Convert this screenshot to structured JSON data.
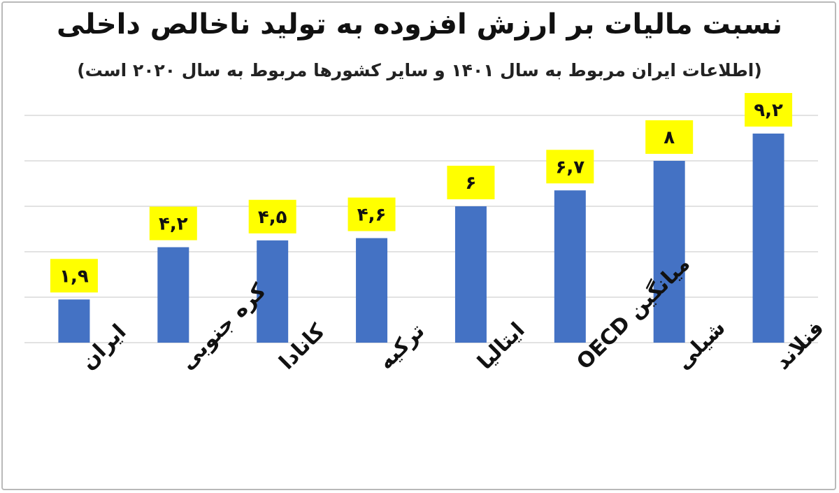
{
  "chart_data": {
    "type": "bar",
    "title": "نسبت مالیات بر ارزش افزوده به تولید ناخالص داخلی",
    "subtitle": "(اطلاعات ایران مربوط به سال ۱۴۰۱ و سایر کشورها مربوط به سال ۲۰۲۰ است)",
    "categories": [
      "ایران",
      "کره جنوبی",
      "کانادا",
      "ترکیه",
      "ایتالیا",
      "میانگین OECD",
      "شیلی",
      "فنلاند"
    ],
    "values": [
      1.9,
      4.2,
      4.5,
      4.6,
      6,
      6.7,
      8,
      9.2
    ],
    "value_labels": [
      "۱,۹",
      "۴,۲",
      "۴,۵",
      "۴,۶",
      "۶",
      "۶,۷",
      "۸",
      "۹,۲"
    ],
    "ylim": [
      0,
      10
    ],
    "grid": true,
    "bar_color": "#4472c4",
    "label_bg_color": "#ffff00",
    "grid_color": "#d9d9d9"
  }
}
